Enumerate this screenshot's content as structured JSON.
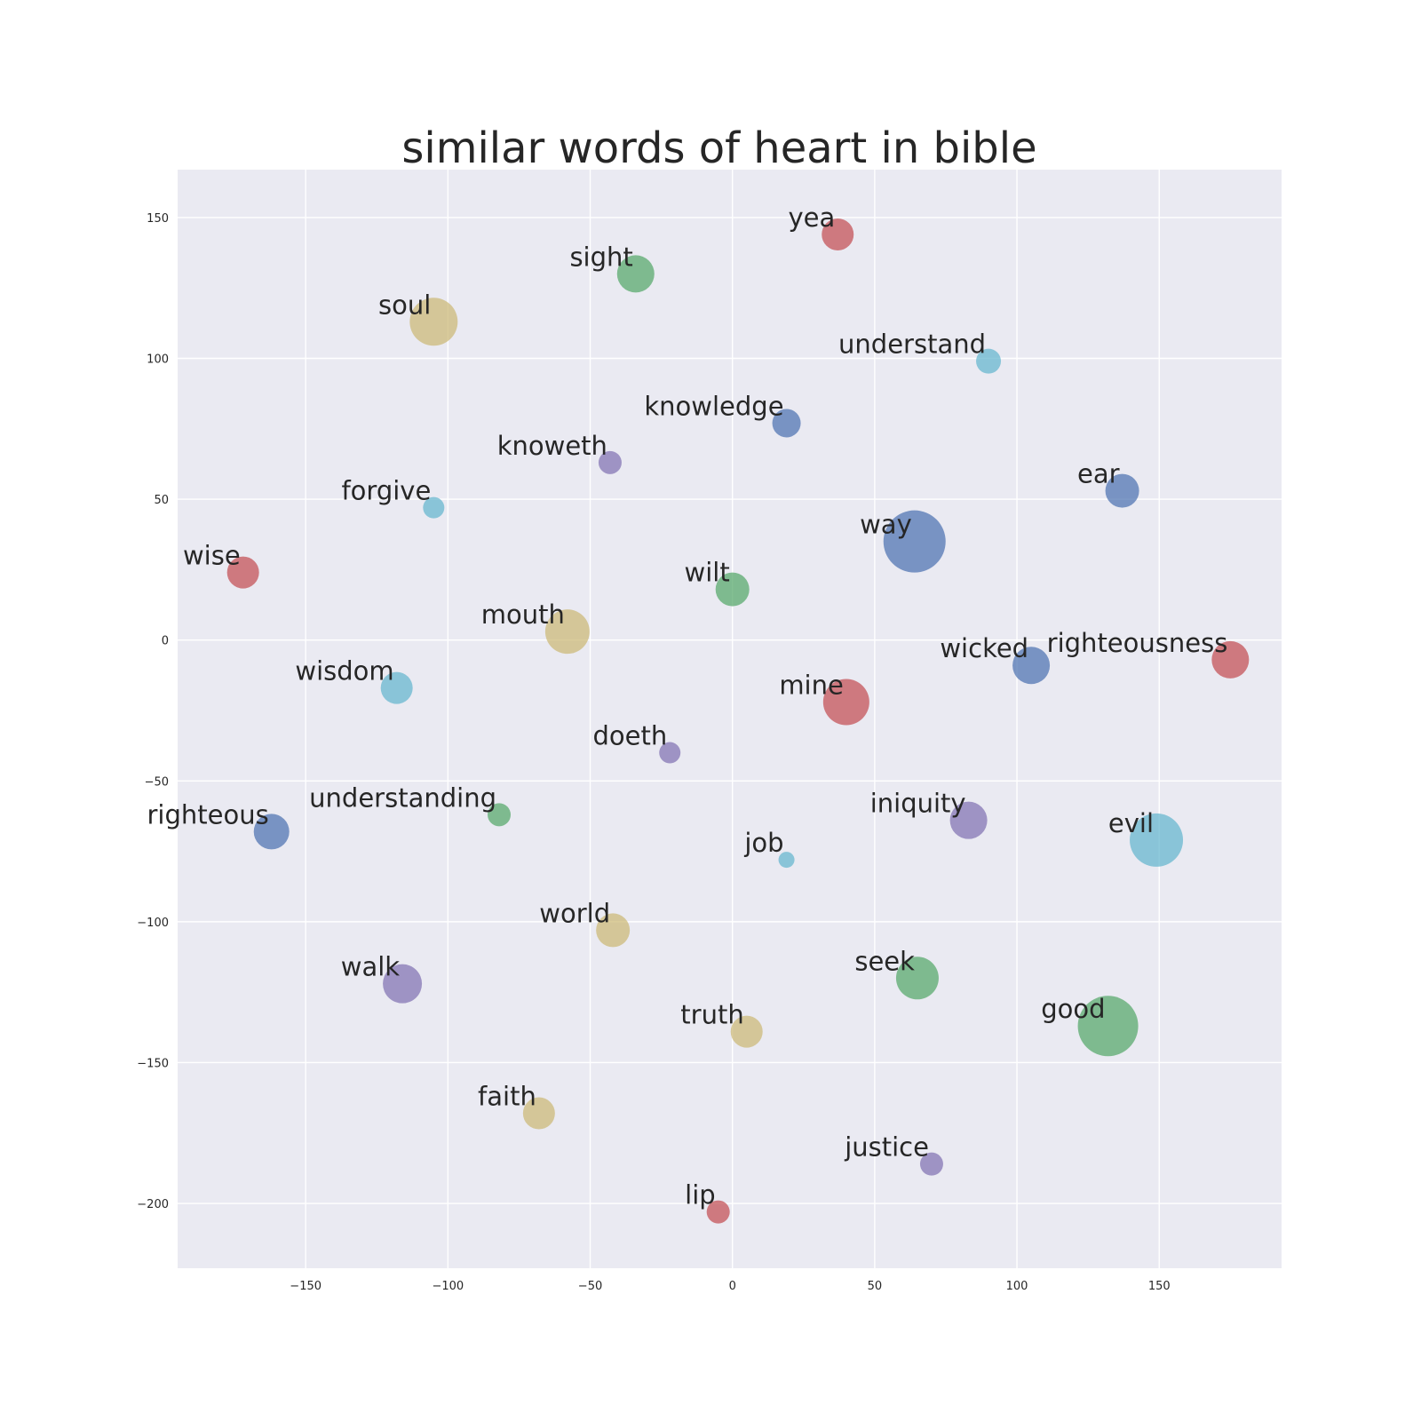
{
  "chart_data": {
    "type": "scatter",
    "title": "similar words of heart in bible",
    "xlabel": "",
    "ylabel": "",
    "xlim": [
      -195,
      193
    ],
    "ylim": [
      -223,
      167
    ],
    "x_ticks": [
      -150,
      -100,
      -50,
      0,
      50,
      100,
      150
    ],
    "y_ticks": [
      150,
      100,
      50,
      0,
      -50,
      -100,
      -150,
      -200
    ],
    "x_tick_labels": [
      "−150",
      "−100",
      "−50",
      "0",
      "50",
      "100",
      "150"
    ],
    "y_tick_labels": [
      "150",
      "100",
      "50",
      "0",
      "−50",
      "−100",
      "−150",
      "−200"
    ],
    "grid": true,
    "colors": {
      "background": "#eaeaf2",
      "grid": "#ffffff",
      "blue": "#4c72b0",
      "green": "#55a868",
      "red": "#c44e52",
      "purple": "#8172b2",
      "yellow": "#ccb974",
      "cyan": "#64b5cd"
    },
    "points": [
      {
        "word": "yea",
        "x": 37,
        "y": 144,
        "size": 18,
        "color": "red"
      },
      {
        "word": "sight",
        "x": -34,
        "y": 130,
        "size": 21,
        "color": "green"
      },
      {
        "word": "soul",
        "x": -105,
        "y": 113,
        "size": 27,
        "color": "yellow"
      },
      {
        "word": "understand",
        "x": 90,
        "y": 99,
        "size": 14,
        "color": "cyan"
      },
      {
        "word": "knowledge",
        "x": 19,
        "y": 77,
        "size": 16,
        "color": "blue"
      },
      {
        "word": "knoweth",
        "x": -43,
        "y": 63,
        "size": 13,
        "color": "purple"
      },
      {
        "word": "ear",
        "x": 137,
        "y": 53,
        "size": 19,
        "color": "blue"
      },
      {
        "word": "forgive",
        "x": -105,
        "y": 47,
        "size": 12,
        "color": "cyan"
      },
      {
        "word": "way",
        "x": 64,
        "y": 35,
        "size": 35,
        "color": "blue"
      },
      {
        "word": "wise",
        "x": -172,
        "y": 24,
        "size": 18,
        "color": "red"
      },
      {
        "word": "wilt",
        "x": 0,
        "y": 18,
        "size": 19,
        "color": "green"
      },
      {
        "word": "mouth",
        "x": -58,
        "y": 3,
        "size": 25,
        "color": "yellow"
      },
      {
        "word": "wicked",
        "x": 105,
        "y": -9,
        "size": 21,
        "color": "blue"
      },
      {
        "word": "righteousness",
        "x": 175,
        "y": -7,
        "size": 21,
        "color": "red"
      },
      {
        "word": "wisdom",
        "x": -118,
        "y": -17,
        "size": 18,
        "color": "cyan"
      },
      {
        "word": "mine",
        "x": 40,
        "y": -22,
        "size": 26,
        "color": "red"
      },
      {
        "word": "doeth",
        "x": -22,
        "y": -40,
        "size": 12,
        "color": "purple"
      },
      {
        "word": "understanding",
        "x": -82,
        "y": -62,
        "size": 13,
        "color": "green"
      },
      {
        "word": "righteous",
        "x": -162,
        "y": -68,
        "size": 20,
        "color": "blue"
      },
      {
        "word": "iniquity",
        "x": 83,
        "y": -64,
        "size": 21,
        "color": "purple"
      },
      {
        "word": "evil",
        "x": 149,
        "y": -71,
        "size": 30,
        "color": "cyan"
      },
      {
        "word": "job",
        "x": 19,
        "y": -78,
        "size": 9,
        "color": "cyan"
      },
      {
        "word": "world",
        "x": -42,
        "y": -103,
        "size": 19,
        "color": "yellow"
      },
      {
        "word": "walk",
        "x": -116,
        "y": -122,
        "size": 22,
        "color": "purple"
      },
      {
        "word": "seek",
        "x": 65,
        "y": -120,
        "size": 24,
        "color": "green"
      },
      {
        "word": "truth",
        "x": 5,
        "y": -139,
        "size": 18,
        "color": "yellow"
      },
      {
        "word": "good",
        "x": 132,
        "y": -137,
        "size": 34,
        "color": "green"
      },
      {
        "word": "faith",
        "x": -68,
        "y": -168,
        "size": 18,
        "color": "yellow"
      },
      {
        "word": "justice",
        "x": 70,
        "y": -186,
        "size": 13,
        "color": "purple"
      },
      {
        "word": "lip",
        "x": -5,
        "y": -203,
        "size": 13,
        "color": "red"
      }
    ]
  }
}
